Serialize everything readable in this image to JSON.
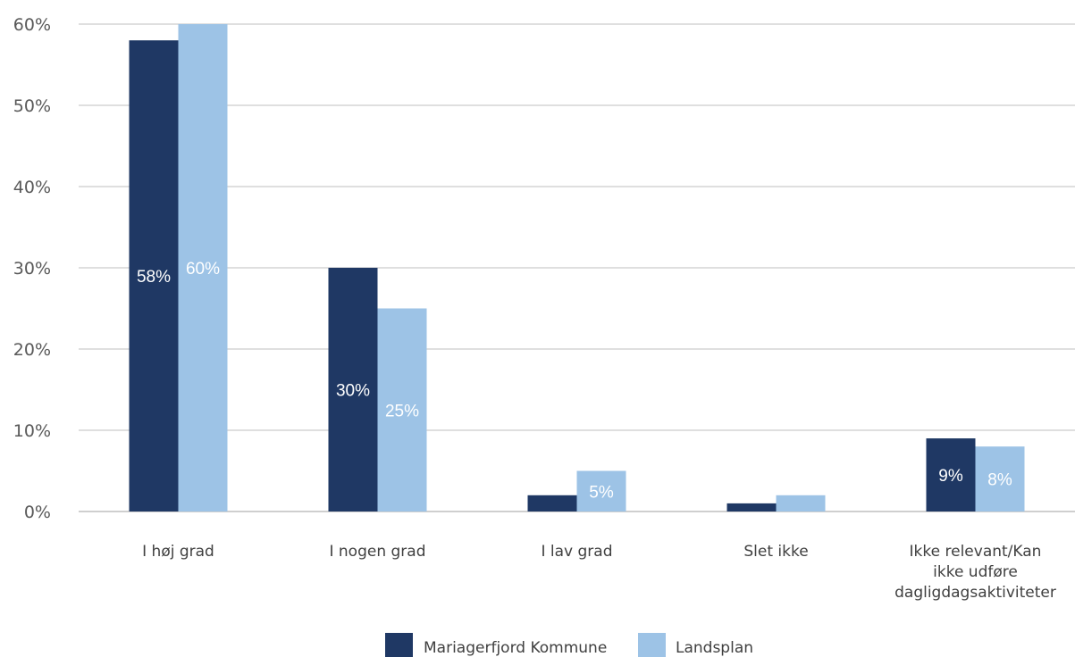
{
  "chart_data": {
    "type": "bar",
    "categories": [
      [
        "I høj grad"
      ],
      [
        "I nogen grad"
      ],
      [
        "I lav grad"
      ],
      [
        "Slet ikke"
      ],
      [
        "Ikke relevant/Kan",
        "ikke udføre",
        "dagligdagsaktiviteter"
      ]
    ],
    "series": [
      {
        "name": "Mariagerfjord Kommune",
        "color": "#1f3864",
        "values": [
          58,
          30,
          2,
          1,
          9
        ],
        "labels": [
          "58%",
          "30%",
          "",
          "",
          "9%"
        ]
      },
      {
        "name": "Landsplan",
        "color": "#9dc3e6",
        "values": [
          60,
          25,
          5,
          2,
          8
        ],
        "labels": [
          "60%",
          "25%",
          "5%",
          "",
          "8%"
        ]
      }
    ],
    "ylim": [
      0,
      60
    ],
    "yticks": [
      "0%",
      "10%",
      "20%",
      "30%",
      "40%",
      "50%",
      "60%"
    ],
    "grid": true,
    "legend_position": "bottom"
  }
}
